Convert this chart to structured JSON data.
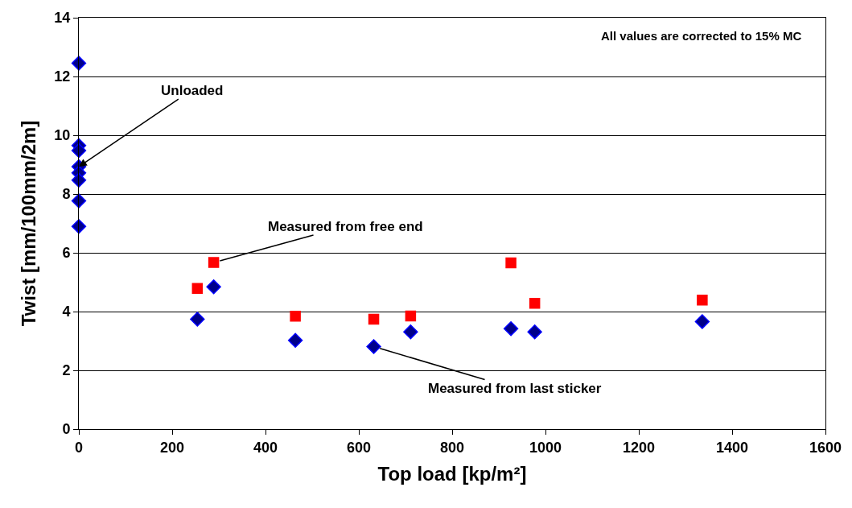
{
  "chart_data": {
    "type": "scatter",
    "xlabel": "Top load [kp/m²]",
    "ylabel": "Twist [mm/100mm/2m]",
    "xlim": [
      0,
      1600
    ],
    "xticks": [
      0,
      200,
      400,
      600,
      800,
      1000,
      1200,
      1400,
      1600
    ],
    "ylim": [
      0,
      14
    ],
    "yticks": [
      0,
      2,
      4,
      6,
      8,
      10,
      12,
      14
    ],
    "grid": "y",
    "series": [
      {
        "color": "#00008b",
        "marker": "diamond",
        "x": [
          0,
          0,
          0,
          0,
          0,
          0,
          0,
          0,
          254,
          289,
          464,
          632,
          711,
          926,
          977,
          1336
        ],
        "values": [
          12.45,
          9.65,
          9.48,
          8.93,
          8.72,
          8.47,
          7.77,
          6.9,
          3.74,
          4.84,
          3.02,
          2.81,
          3.31,
          3.42,
          3.31,
          3.66
        ]
      },
      {
        "color": "#ff0000",
        "marker": "square",
        "x": [
          254,
          289,
          464,
          632,
          711,
          926,
          977,
          1336
        ],
        "values": [
          4.79,
          5.67,
          3.84,
          3.74,
          3.85,
          5.66,
          4.28,
          4.39
        ]
      }
    ],
    "annotations": [
      "All values are corrected to 15% MC",
      {
        "text": "Unloaded",
        "x": 0,
        "y": 8.93
      },
      {
        "text": "Measured from free end",
        "x": 289,
        "y": 5.67
      },
      {
        "text": "Measured from last sticker",
        "x": 632,
        "y": 2.81
      }
    ]
  }
}
